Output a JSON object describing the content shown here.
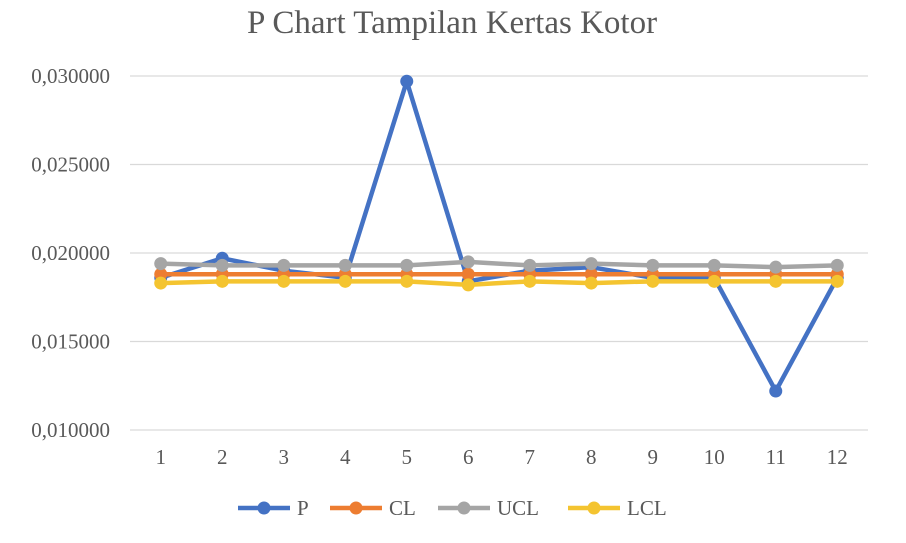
{
  "chart_data": {
    "type": "line",
    "title": "P Chart Tampilan Kertas Kotor",
    "xlabel": "",
    "ylabel": "",
    "categories": [
      "1",
      "2",
      "3",
      "4",
      "5",
      "6",
      "7",
      "8",
      "9",
      "10",
      "11",
      "12"
    ],
    "ylim": [
      0.01,
      0.03
    ],
    "yticks": [
      0.01,
      0.015,
      0.02,
      0.025,
      0.03
    ],
    "ytick_labels": [
      "0,010000",
      "0,015000",
      "0,020000",
      "0,025000",
      "0,030000"
    ],
    "grid": true,
    "legend_position": "bottom",
    "series": [
      {
        "name": "P",
        "color": "#4472C4",
        "values": [
          0.0186,
          0.0197,
          0.019,
          0.0186,
          0.0297,
          0.0184,
          0.019,
          0.0192,
          0.0186,
          0.0186,
          0.0122,
          0.0186
        ]
      },
      {
        "name": "CL",
        "color": "#ED7D31",
        "values": [
          0.0188,
          0.0188,
          0.0188,
          0.0188,
          0.0188,
          0.0188,
          0.0188,
          0.0188,
          0.0188,
          0.0188,
          0.0188,
          0.0188
        ]
      },
      {
        "name": "UCL",
        "color": "#A5A5A5",
        "values": [
          0.0194,
          0.0193,
          0.0193,
          0.0193,
          0.0193,
          0.0195,
          0.0193,
          0.0194,
          0.0193,
          0.0193,
          0.0192,
          0.0193
        ]
      },
      {
        "name": "LCL",
        "color": "#F4C430",
        "values": [
          0.0183,
          0.0184,
          0.0184,
          0.0184,
          0.0184,
          0.0182,
          0.0184,
          0.0183,
          0.0184,
          0.0184,
          0.0184,
          0.0184
        ]
      }
    ]
  }
}
